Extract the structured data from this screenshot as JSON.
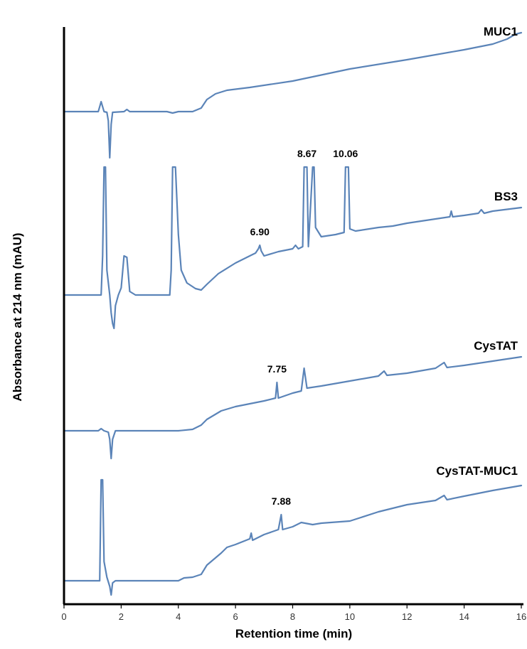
{
  "chart_data": {
    "type": "line",
    "title": "",
    "xlabel": "Retention time (min)",
    "ylabel": "Absorbance at 214 nm (mAU)",
    "xlim": [
      0,
      16
    ],
    "xticks": [
      0,
      2,
      4,
      6,
      8,
      10,
      12,
      14,
      16
    ],
    "y_ticks_shown": false,
    "layout": "stacked-offset",
    "line_color": "#5b84b8",
    "series": [
      {
        "name": "MUC1",
        "peak_labels": [],
        "points": [
          [
            0.0,
            157
          ],
          [
            1.2,
            157
          ],
          [
            1.3,
            143
          ],
          [
            1.4,
            157
          ],
          [
            1.5,
            158
          ],
          [
            1.55,
            170
          ],
          [
            1.6,
            222
          ],
          [
            1.65,
            175
          ],
          [
            1.7,
            158
          ],
          [
            2.1,
            157
          ],
          [
            2.2,
            154
          ],
          [
            2.3,
            157
          ],
          [
            3.6,
            157
          ],
          [
            3.8,
            159
          ],
          [
            4.0,
            157
          ],
          [
            4.5,
            157
          ],
          [
            4.8,
            152
          ],
          [
            5.0,
            140
          ],
          [
            5.3,
            132
          ],
          [
            5.7,
            127
          ],
          [
            6.5,
            123
          ],
          [
            8.0,
            114
          ],
          [
            10.0,
            97
          ],
          [
            12.0,
            84
          ],
          [
            14.0,
            70
          ],
          [
            15.0,
            62
          ],
          [
            15.5,
            55
          ],
          [
            15.8,
            48
          ],
          [
            16.0,
            46
          ]
        ]
      },
      {
        "name": "BS3",
        "peak_labels": [
          {
            "text": "6.90",
            "x": 6.85
          },
          {
            "text": "8.67",
            "x": 8.5
          },
          {
            "text": "10.06",
            "x": 9.85
          }
        ],
        "points": [
          [
            0.0,
            415
          ],
          [
            1.3,
            415
          ],
          [
            1.35,
            360
          ],
          [
            1.4,
            235
          ],
          [
            1.45,
            235
          ],
          [
            1.5,
            380
          ],
          [
            1.6,
            415
          ],
          [
            1.65,
            440
          ],
          [
            1.7,
            455
          ],
          [
            1.75,
            462
          ],
          [
            1.8,
            430
          ],
          [
            1.9,
            415
          ],
          [
            2.0,
            405
          ],
          [
            2.1,
            360
          ],
          [
            2.2,
            362
          ],
          [
            2.3,
            410
          ],
          [
            2.5,
            415
          ],
          [
            3.7,
            415
          ],
          [
            3.75,
            380
          ],
          [
            3.8,
            235
          ],
          [
            3.85,
            235
          ],
          [
            3.9,
            235
          ],
          [
            4.0,
            330
          ],
          [
            4.1,
            380
          ],
          [
            4.3,
            398
          ],
          [
            4.6,
            406
          ],
          [
            4.8,
            408
          ],
          [
            5.0,
            400
          ],
          [
            5.4,
            385
          ],
          [
            6.0,
            370
          ],
          [
            6.6,
            358
          ],
          [
            6.7,
            356
          ],
          [
            6.8,
            350
          ],
          [
            6.85,
            345
          ],
          [
            6.9,
            353
          ],
          [
            7.0,
            360
          ],
          [
            7.5,
            354
          ],
          [
            8.0,
            350
          ],
          [
            8.1,
            345
          ],
          [
            8.2,
            350
          ],
          [
            8.35,
            347
          ],
          [
            8.4,
            235
          ],
          [
            8.5,
            235
          ],
          [
            8.55,
            347
          ],
          [
            8.7,
            235
          ],
          [
            8.75,
            235
          ],
          [
            8.8,
            320
          ],
          [
            9.0,
            333
          ],
          [
            9.5,
            330
          ],
          [
            9.8,
            327
          ],
          [
            9.85,
            235
          ],
          [
            9.95,
            235
          ],
          [
            10.0,
            322
          ],
          [
            10.2,
            325
          ],
          [
            11.0,
            320
          ],
          [
            11.5,
            318
          ],
          [
            12.0,
            314
          ],
          [
            13.0,
            308
          ],
          [
            13.5,
            305
          ],
          [
            13.55,
            297
          ],
          [
            13.6,
            305
          ],
          [
            14.0,
            303
          ],
          [
            14.5,
            300
          ],
          [
            14.6,
            295
          ],
          [
            14.7,
            300
          ],
          [
            15.0,
            297
          ],
          [
            16.0,
            292
          ]
        ]
      },
      {
        "name": "CysTAT",
        "peak_labels": [
          {
            "text": "7.75",
            "x": 7.45
          }
        ],
        "points": [
          [
            0.0,
            606
          ],
          [
            1.2,
            606
          ],
          [
            1.3,
            603
          ],
          [
            1.4,
            606
          ],
          [
            1.55,
            608
          ],
          [
            1.6,
            618
          ],
          [
            1.65,
            645
          ],
          [
            1.7,
            618
          ],
          [
            1.8,
            606
          ],
          [
            4.0,
            606
          ],
          [
            4.5,
            604
          ],
          [
            4.8,
            598
          ],
          [
            5.0,
            590
          ],
          [
            5.5,
            578
          ],
          [
            6.0,
            572
          ],
          [
            7.0,
            564
          ],
          [
            7.4,
            560
          ],
          [
            7.45,
            538
          ],
          [
            7.5,
            560
          ],
          [
            8.0,
            553
          ],
          [
            8.3,
            550
          ],
          [
            8.4,
            518
          ],
          [
            8.5,
            546
          ],
          [
            9.0,
            543
          ],
          [
            10.0,
            536
          ],
          [
            11.0,
            529
          ],
          [
            11.2,
            522
          ],
          [
            11.3,
            528
          ],
          [
            12.0,
            525
          ],
          [
            13.0,
            518
          ],
          [
            13.3,
            510
          ],
          [
            13.4,
            517
          ],
          [
            14.0,
            514
          ],
          [
            15.0,
            508
          ],
          [
            16.0,
            502
          ]
        ]
      },
      {
        "name": "CysTAT-MUC1",
        "peak_labels": [
          {
            "text": "7.88",
            "x": 7.6
          }
        ],
        "points": [
          [
            0.0,
            817
          ],
          [
            1.25,
            817
          ],
          [
            1.3,
            675
          ],
          [
            1.35,
            675
          ],
          [
            1.4,
            790
          ],
          [
            1.5,
            812
          ],
          [
            1.6,
            825
          ],
          [
            1.65,
            837
          ],
          [
            1.7,
            820
          ],
          [
            1.8,
            817
          ],
          [
            4.0,
            817
          ],
          [
            4.2,
            813
          ],
          [
            4.5,
            812
          ],
          [
            4.8,
            808
          ],
          [
            5.0,
            795
          ],
          [
            5.5,
            778
          ],
          [
            5.7,
            770
          ],
          [
            6.0,
            766
          ],
          [
            6.5,
            758
          ],
          [
            6.55,
            750
          ],
          [
            6.6,
            760
          ],
          [
            7.0,
            752
          ],
          [
            7.5,
            745
          ],
          [
            7.6,
            724
          ],
          [
            7.65,
            745
          ],
          [
            8.0,
            741
          ],
          [
            8.3,
            735
          ],
          [
            8.7,
            738
          ],
          [
            9.0,
            736
          ],
          [
            10.0,
            733
          ],
          [
            11.0,
            720
          ],
          [
            12.0,
            710
          ],
          [
            13.0,
            704
          ],
          [
            13.3,
            697
          ],
          [
            13.4,
            703
          ],
          [
            14.0,
            698
          ],
          [
            15.0,
            690
          ],
          [
            16.0,
            683
          ]
        ]
      }
    ]
  }
}
